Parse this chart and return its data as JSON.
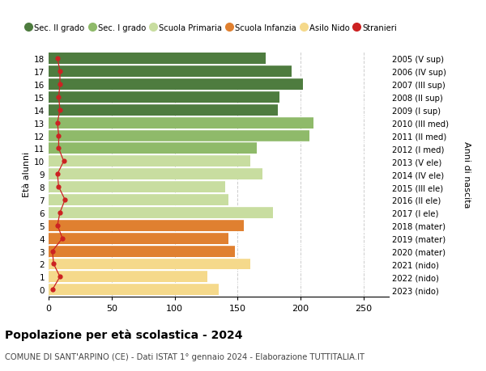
{
  "ages": [
    0,
    1,
    2,
    3,
    4,
    5,
    6,
    7,
    8,
    9,
    10,
    11,
    12,
    13,
    14,
    15,
    16,
    17,
    18
  ],
  "right_labels": [
    "2023 (nido)",
    "2022 (nido)",
    "2021 (nido)",
    "2020 (mater)",
    "2019 (mater)",
    "2018 (mater)",
    "2017 (I ele)",
    "2016 (II ele)",
    "2015 (III ele)",
    "2014 (IV ele)",
    "2013 (V ele)",
    "2012 (I med)",
    "2011 (II med)",
    "2010 (III med)",
    "2009 (I sup)",
    "2008 (II sup)",
    "2007 (III sup)",
    "2006 (IV sup)",
    "2005 (V sup)"
  ],
  "bar_values": [
    135,
    126,
    160,
    148,
    143,
    155,
    178,
    143,
    140,
    170,
    160,
    165,
    207,
    210,
    182,
    183,
    202,
    193,
    172
  ],
  "bar_colors": [
    "#f5d98b",
    "#f5d98b",
    "#f5d98b",
    "#e08030",
    "#e08030",
    "#e08030",
    "#c8dda0",
    "#c8dda0",
    "#c8dda0",
    "#c8dda0",
    "#c8dda0",
    "#8fba6a",
    "#8fba6a",
    "#8fba6a",
    "#4e7c3f",
    "#4e7c3f",
    "#4e7c3f",
    "#4e7c3f",
    "#4e7c3f"
  ],
  "stranieri_values": [
    3,
    9,
    4,
    3,
    11,
    7,
    9,
    13,
    8,
    7,
    12,
    8,
    8,
    7,
    9,
    8,
    9,
    9,
    7
  ],
  "ylabel": "Età alunni",
  "right_ylabel": "Anni di nascita",
  "title": "Popolazione per età scolastica - 2024",
  "subtitle": "COMUNE DI SANT'ARPINO (CE) - Dati ISTAT 1° gennaio 2024 - Elaborazione TUTTITALIA.IT",
  "legend_labels": [
    "Sec. II grado",
    "Sec. I grado",
    "Scuola Primaria",
    "Scuola Infanzia",
    "Asilo Nido",
    "Stranieri"
  ],
  "legend_colors": [
    "#4e7c3f",
    "#8fba6a",
    "#c8dda0",
    "#e08030",
    "#f5d98b",
    "#cc2222"
  ],
  "xlim": [
    0,
    270
  ],
  "grid_color": "#cccccc",
  "bg_color": "#ffffff"
}
